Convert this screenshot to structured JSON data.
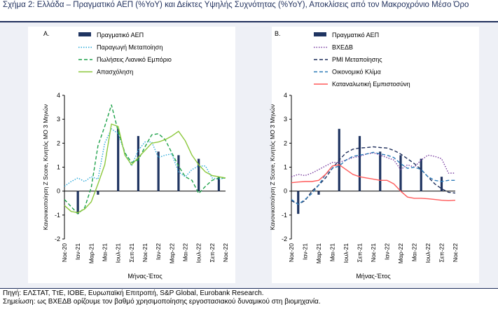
{
  "title": "Σχήμα 2: Ελλάδα – Πραγματικό ΑΕΠ (%ΥοΥ) και Δείκτες Υψηλής Συχνότητας (%ΥοΥ), Αποκλίσεις από τον Μακροχρόνιο Μέσο Όρο",
  "footer": {
    "source": "Πηγή: ΕΛΣΤΑΤ, ΤτΕ, ΙΟΒΕ, Ευρωπαϊκή Επιτροπή, S&P Global, Eurobank Research.",
    "note": "Σημείωση: ως ΒΧΕΔΒ ορίζουμε τον βαθμό χρησιμοποίησης εργοστασιακού δυναμικού στη βιομηχανία."
  },
  "colors": {
    "background": "#eef0f6",
    "panel": "#ffffff",
    "gdp_bar": "#1f3461",
    "manufacturing": "#29a8d8",
    "retail": "#1ea24a",
    "employment": "#8cc83c",
    "capacity": "#7a3ea0",
    "pmi": "#1f2f5c",
    "econ_climate": "#2e7bb8",
    "consumer_conf": "#ff5a5a"
  },
  "chart_data": [
    {
      "type": "bar",
      "panel_label": "A.",
      "ylabel": "Κανονικοποίηση Z Score, Κινητός ΜΟ 3 Μηνών",
      "xlabel": "Μήνας-Έτος",
      "ylim": [
        -2,
        4
      ],
      "yticks": [
        -2,
        -1,
        0,
        1,
        2,
        3,
        4
      ],
      "x_tick_labels": [
        "Νοε-20",
        "Ιαν-21",
        "Μαρ-21",
        "Μαι-21",
        "Ιουλ-21",
        "Σεπ-21",
        "Νοε-21",
        "Ιαν-22",
        "Μαρ-22",
        "Μαι-22",
        "Ιουλ-22",
        "Σεπ-22",
        "Νοε-22"
      ],
      "n_months": 25,
      "legend_position": "top-left",
      "bars": {
        "name": "Πραγματικό ΑΕΠ",
        "months": [
          2,
          5,
          8,
          11,
          14,
          17,
          20,
          23
        ],
        "values": [
          -0.95,
          -0.15,
          2.6,
          2.3,
          1.65,
          1.5,
          1.35,
          0.6
        ]
      },
      "series": [
        {
          "name": "Παραγωγή Μεταποίηση",
          "style": "dotted",
          "color_key": "manufacturing",
          "values": [
            0.2,
            0.4,
            0.55,
            0.4,
            0.6,
            0.5,
            2.0,
            2.6,
            2.4,
            1.6,
            1.05,
            1.7,
            2.05,
            2.05,
            1.4,
            1.5,
            1.55,
            0.8,
            0.6,
            0.9,
            1.05,
            1.05,
            0.55,
            0.5,
            0.55
          ]
        },
        {
          "name": "Πωλήσεις Λιανικό Εμπόριο",
          "style": "dashed",
          "color_key": "retail",
          "values": [
            -0.35,
            -0.65,
            -0.95,
            -0.7,
            0.15,
            1.9,
            2.7,
            3.6,
            2.5,
            1.6,
            1.2,
            1.3,
            1.85,
            2.35,
            2.4,
            2.15,
            1.6,
            1.05,
            0.6,
            0.45,
            -0.1,
            0.2,
            0.45,
            0.55,
            0.55
          ]
        },
        {
          "name": "Απασχόληση",
          "style": "solid",
          "color_key": "employment",
          "values": [
            -0.6,
            -0.85,
            -0.9,
            -0.75,
            -0.45,
            0.3,
            1.1,
            2.8,
            2.7,
            1.5,
            1.1,
            1.4,
            1.7,
            2.0,
            2.05,
            2.15,
            2.3,
            2.5,
            2.1,
            1.5,
            1.1,
            0.8,
            0.65,
            0.6,
            0.55
          ]
        }
      ]
    },
    {
      "type": "bar",
      "panel_label": "Β.",
      "ylabel": "Κανονικοποίηση Z Score, Κινητός ΜΟ 3 Μηνών",
      "xlabel": "Μήνας-Έτος",
      "ylim": [
        -2,
        4
      ],
      "yticks": [
        -2,
        -1,
        0,
        1,
        2,
        3,
        4
      ],
      "x_tick_labels": [
        "Νοε-20",
        "Ιαν-21",
        "Μαρ-21",
        "Μαι-21",
        "Ιουλ-21",
        "Σεπ-21",
        "Νοε-21",
        "Ιαν-22",
        "Μαρ-22",
        "Μαι-22",
        "Ιουλ-22",
        "Σεπ-22",
        "Νοε-22"
      ],
      "n_months": 25,
      "legend_position": "top-left",
      "bars": {
        "name": "Πραγματικό ΑΕΠ",
        "months": [
          1,
          4,
          7,
          10,
          13,
          16,
          19,
          22
        ],
        "values": [
          -0.95,
          -0.15,
          2.6,
          2.3,
          1.65,
          1.5,
          1.35,
          0.6
        ]
      },
      "series": [
        {
          "name": "ΒΧΕΔΒ",
          "style": "dotted",
          "color_key": "capacity",
          "values": [
            0.6,
            0.7,
            0.65,
            0.75,
            0.9,
            1.05,
            1.2,
            1.2,
            1.3,
            1.4,
            1.45,
            1.55,
            1.6,
            1.5,
            1.4,
            1.3,
            0.9,
            1.1,
            1.0,
            1.3,
            1.5,
            1.45,
            1.35,
            0.75,
            0.75
          ]
        },
        {
          "name": "PMI Μεταποίησης",
          "style": "dashed",
          "color_key": "pmi",
          "values": [
            -0.4,
            -0.55,
            -0.4,
            0.0,
            0.25,
            0.55,
            0.95,
            1.3,
            1.6,
            1.75,
            1.8,
            1.82,
            1.85,
            1.82,
            1.8,
            1.7,
            1.55,
            1.35,
            1.15,
            0.9,
            0.6,
            0.3,
            0.1,
            -0.05,
            -0.08
          ]
        },
        {
          "name": "Οικονομικό Κλίμα",
          "style": "dashed",
          "color_key": "econ_climate",
          "values": [
            -0.35,
            -0.55,
            -0.35,
            -0.1,
            0.25,
            0.7,
            0.95,
            1.05,
            1.3,
            1.45,
            1.5,
            1.55,
            1.62,
            1.55,
            1.5,
            1.4,
            1.15,
            0.95,
            1.0,
            0.9,
            0.6,
            0.45,
            0.4,
            0.45,
            0.45
          ]
        },
        {
          "name": "Καταναλωτική Εμπιστοσύνη",
          "style": "solid",
          "color_key": "consumer_conf",
          "values": [
            0.35,
            0.38,
            0.4,
            0.4,
            0.45,
            0.7,
            1.05,
            1.1,
            0.9,
            0.7,
            0.6,
            0.55,
            0.5,
            0.45,
            0.45,
            0.3,
            0.0,
            -0.25,
            -0.3,
            -0.3,
            -0.32,
            -0.35,
            -0.38,
            -0.4,
            -0.38
          ]
        }
      ]
    }
  ]
}
